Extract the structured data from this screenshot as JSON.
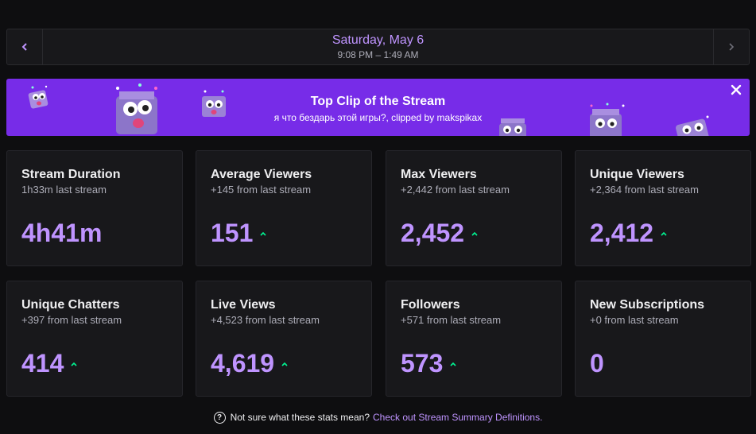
{
  "header": {
    "date": "Saturday, May 6",
    "time_range": "9:08 PM – 1:49 AM",
    "prev_icon": "chevron-left-icon",
    "next_icon": "chevron-right-icon"
  },
  "banner": {
    "title": "Top Clip of the Stream",
    "subtitle": "я что бездарь этой игры?, clipped by makspikax",
    "close_icon": "close-icon",
    "background": "#772ce8"
  },
  "stats": [
    {
      "title": "Stream Duration",
      "sub": "1h33m last stream",
      "value": "4h41m",
      "trend": "none"
    },
    {
      "title": "Average Viewers",
      "sub": "+145 from last stream",
      "value": "151",
      "trend": "up"
    },
    {
      "title": "Max Viewers",
      "sub": "+2,442 from last stream",
      "value": "2,452",
      "trend": "up"
    },
    {
      "title": "Unique Viewers",
      "sub": "+2,364 from last stream",
      "value": "2,412",
      "trend": "up"
    },
    {
      "title": "Unique Chatters",
      "sub": "+397 from last stream",
      "value": "414",
      "trend": "up"
    },
    {
      "title": "Live Views",
      "sub": "+4,523 from last stream",
      "value": "4,619",
      "trend": "up"
    },
    {
      "title": "Followers",
      "sub": "+571 from last stream",
      "value": "573",
      "trend": "up"
    },
    {
      "title": "New Subscriptions",
      "sub": "+0 from last stream",
      "value": "0",
      "trend": "none"
    }
  ],
  "footer": {
    "question": "Not sure what these stats mean?",
    "link": "Check out Stream Summary Definitions."
  },
  "colors": {
    "accent": "#bf94ff",
    "trend_up": "#00f593",
    "card_bg": "#18181b"
  }
}
